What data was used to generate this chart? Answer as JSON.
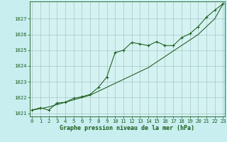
{
  "bg_color": "#c8eef0",
  "plot_bg_color": "#d5f2f2",
  "grid_color": "#9abcbc",
  "line_color": "#1a5c1a",
  "hours": [
    0,
    1,
    2,
    3,
    4,
    5,
    6,
    7,
    8,
    9,
    10,
    11,
    12,
    13,
    14,
    15,
    16,
    17,
    18,
    19,
    20,
    21,
    22,
    23
  ],
  "pressure_marker": [
    1021.2,
    1021.35,
    1021.2,
    1021.65,
    1021.7,
    1021.95,
    1022.05,
    1022.2,
    1022.65,
    1023.3,
    1024.85,
    1025.0,
    1025.5,
    1025.4,
    1025.3,
    1025.55,
    1025.3,
    1025.3,
    1025.8,
    1026.05,
    1026.5,
    1027.1,
    1027.55,
    1027.95
  ],
  "pressure_smooth": [
    1021.2,
    1021.3,
    1021.4,
    1021.55,
    1021.7,
    1021.85,
    1022.0,
    1022.15,
    1022.4,
    1022.65,
    1022.9,
    1023.15,
    1023.4,
    1023.65,
    1023.9,
    1024.25,
    1024.6,
    1024.95,
    1025.3,
    1025.65,
    1026.0,
    1026.5,
    1027.0,
    1027.95
  ],
  "y_ticks": [
    1021,
    1022,
    1023,
    1024,
    1025,
    1026,
    1027
  ],
  "y_min": 1020.8,
  "y_max": 1028.1,
  "x_min": -0.3,
  "x_max": 23.2,
  "xlabel": "Graphe pression niveau de la mer (hPa)",
  "tick_fontsize": 5.2,
  "label_fontsize": 6.0,
  "font_color": "#1a5c1a"
}
